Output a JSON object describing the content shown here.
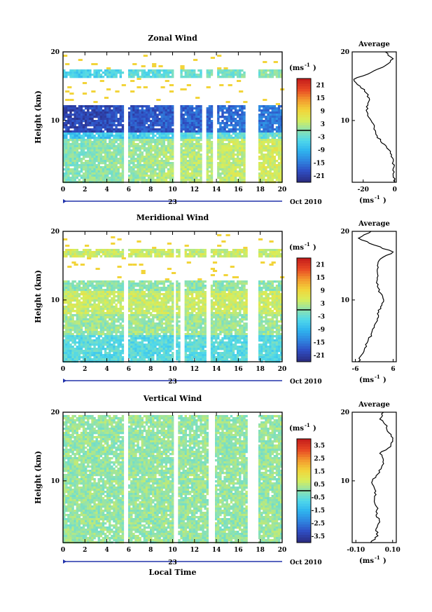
{
  "chart_data": [
    {
      "type": "heatmap",
      "title": "Zonal Wind",
      "xlabel": "",
      "ylabel": "Height (km)",
      "x_ticks": [
        "0",
        "2",
        "4",
        "6",
        "8",
        "10",
        "12",
        "14",
        "16",
        "18",
        "20"
      ],
      "y_ticks": [
        "10",
        "20"
      ],
      "x_range": [
        0,
        20
      ],
      "y_range": [
        1,
        20
      ],
      "date_day": "23",
      "date_label": "Oct 2010",
      "colorbar": {
        "unit": "(ms",
        "unit_exp": "-1",
        "unit_close": ")",
        "ticks": [
          "21",
          "15",
          "9",
          "3",
          "-3",
          "-9",
          "-15",
          "-21"
        ],
        "range": [
          -24,
          24
        ]
      },
      "data_gaps_hours": [
        [
          5.5,
          5.8
        ],
        [
          10.0,
          10.6
        ],
        [
          12.6,
          13.0
        ],
        [
          13.5,
          14.0
        ],
        [
          16.6,
          17.8
        ]
      ],
      "profile_layers": [
        {
          "from": 1,
          "to": 7.5,
          "value": 2
        },
        {
          "from": 7.5,
          "to": 8.5,
          "value": -5
        },
        {
          "from": 8.5,
          "to": 12.5,
          "value": -18
        },
        {
          "from": 16.5,
          "to": 17.5,
          "value": -3
        }
      ],
      "average_profile": {
        "title": "Average",
        "xlabel": "(ms",
        "xlabel_exp": "-1",
        "xlabel_close": ")",
        "x_ticks": [
          "-20",
          "0"
        ],
        "x_range": [
          -27,
          1
        ],
        "y_ticks": [
          "10",
          "20"
        ],
        "heights": [
          1,
          2,
          3,
          4,
          5,
          6,
          7,
          8,
          9,
          10,
          11,
          12,
          13,
          14,
          15,
          16,
          17,
          18,
          19,
          20
        ],
        "values": [
          0,
          -1,
          -1,
          -1,
          -2,
          -5,
          -9,
          -12,
          -13,
          -15,
          -17,
          -18,
          -16,
          -18,
          -22,
          -26,
          -15,
          -6,
          -1,
          -6
        ]
      }
    },
    {
      "type": "heatmap",
      "title": "Meridional Wind",
      "xlabel": "",
      "ylabel": "Height (km)",
      "x_ticks": [
        "0",
        "2",
        "4",
        "6",
        "8",
        "10",
        "12",
        "14",
        "16",
        "18",
        "20"
      ],
      "y_ticks": [
        "10",
        "20"
      ],
      "x_range": [
        0,
        20
      ],
      "y_range": [
        1,
        20
      ],
      "date_day": "23",
      "date_label": "Oct 2010",
      "colorbar": {
        "unit": "(ms",
        "unit_exp": "-1",
        "unit_close": ")",
        "ticks": [
          "21",
          "15",
          "9",
          "3",
          "-3",
          "-9",
          "-15",
          "-21"
        ],
        "range": [
          -24,
          24
        ]
      },
      "data_gaps_hours": [
        [
          5.5,
          5.8
        ],
        [
          10.0,
          10.3
        ],
        [
          10.6,
          11.0
        ],
        [
          13.0,
          13.4
        ],
        [
          16.8,
          17.8
        ]
      ],
      "profile_layers": [
        {
          "from": 1,
          "to": 5,
          "value": -4
        },
        {
          "from": 5,
          "to": 8,
          "value": 1
        },
        {
          "from": 8,
          "to": 11.5,
          "value": 4
        },
        {
          "from": 11.5,
          "to": 13,
          "value": 0
        },
        {
          "from": 16.5,
          "to": 17.5,
          "value": 4
        }
      ],
      "average_profile": {
        "title": "Average",
        "xlabel": "(ms",
        "xlabel_exp": "-1",
        "xlabel_close": ")",
        "x_ticks": [
          "-6",
          "6"
        ],
        "x_range": [
          -7,
          7
        ],
        "y_ticks": [
          "10",
          "20"
        ],
        "heights": [
          1,
          2,
          3,
          4,
          5,
          6,
          7,
          8,
          9,
          10,
          11,
          12,
          13,
          14,
          15,
          16,
          17,
          18,
          19,
          20
        ],
        "values": [
          -5,
          -4,
          -3,
          -2,
          -1,
          0,
          1,
          1,
          2,
          3,
          2,
          1,
          1,
          1,
          1,
          2,
          6,
          0,
          -5,
          -1
        ]
      }
    },
    {
      "type": "heatmap",
      "title": "Vertical Wind",
      "xlabel": "Local Time",
      "ylabel": "Height (km)",
      "x_ticks": [
        "0",
        "2",
        "4",
        "6",
        "8",
        "10",
        "12",
        "14",
        "16",
        "18",
        "20"
      ],
      "y_ticks": [
        "10",
        "20"
      ],
      "x_range": [
        0,
        20
      ],
      "y_range": [
        1,
        20
      ],
      "date_day": "23",
      "date_label": "Oct 2010",
      "colorbar": {
        "unit": "(ms",
        "unit_exp": "-1",
        "unit_close": ")",
        "ticks": [
          "3.5",
          "2.5",
          "1.5",
          "0.5",
          "-0.5",
          "-1.5",
          "-2.5",
          "-3.5"
        ],
        "range": [
          -4,
          4
        ]
      },
      "data_gaps_hours": [
        [
          5.5,
          5.9
        ],
        [
          10.0,
          10.4
        ],
        [
          13.2,
          13.8
        ],
        [
          16.8,
          17.8
        ]
      ],
      "profile_layers": [
        {
          "from": 1,
          "to": 20,
          "value": 0.1
        }
      ],
      "average_profile": {
        "title": "Average",
        "xlabel": "(ms",
        "xlabel_exp": "-1",
        "xlabel_close": ")",
        "x_ticks": [
          "-0.10",
          "0.10"
        ],
        "x_range": [
          -0.12,
          0.12
        ],
        "y_ticks": [
          "10",
          "20"
        ],
        "heights": [
          1,
          2,
          3,
          4,
          5,
          6,
          7,
          8,
          9,
          10,
          11,
          12,
          13,
          14,
          15,
          16,
          17,
          18,
          19,
          20
        ],
        "values": [
          -0.02,
          0.02,
          0.01,
          0.03,
          0.01,
          0.02,
          0.0,
          0.01,
          0.0,
          -0.01,
          0.02,
          0.04,
          0.05,
          0.03,
          0.09,
          0.1,
          0.08,
          0.07,
          0.03,
          0.05
        ]
      }
    }
  ]
}
